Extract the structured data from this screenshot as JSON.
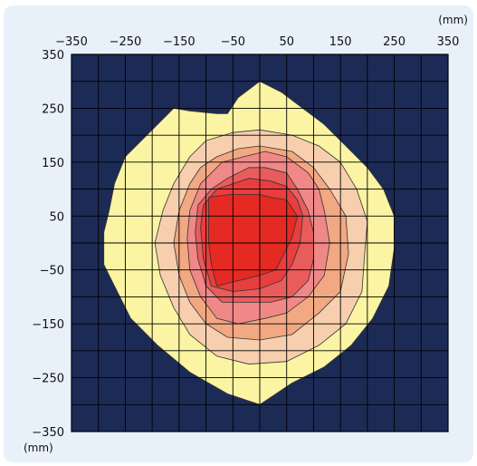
{
  "chart_data": {
    "type": "heatmap",
    "subtype": "contour",
    "title": "",
    "x_unit": "(mm)",
    "y_unit": "(mm)",
    "xlim": [
      -350,
      350
    ],
    "ylim": [
      -350,
      350
    ],
    "x_ticks": [
      -350,
      -250,
      -150,
      -50,
      50,
      150,
      250,
      350
    ],
    "y_ticks": [
      350,
      250,
      150,
      50,
      -50,
      -150,
      -250,
      -350
    ],
    "x_tick_labels": [
      "−350",
      "−250",
      "−150",
      "−50",
      "50",
      "150",
      "250",
      "350"
    ],
    "y_tick_labels": [
      "350",
      "250",
      "150",
      "50",
      "−50",
      "−150",
      "−250",
      "−350"
    ],
    "grid_step": 50,
    "grid": true,
    "x_axis_position": "top",
    "background_color": "#1c2b56",
    "grid_color": "#000000",
    "level_colors": [
      "#fbf4a2",
      "#f7cfae",
      "#f2a882",
      "#f08888",
      "#e85c5c",
      "#e83e3e",
      "#e42a22"
    ],
    "contours": [
      {
        "level": 1,
        "points": [
          [
            -160,
            250
          ],
          [
            -130,
            245
          ],
          [
            -80,
            240
          ],
          [
            -60,
            240
          ],
          [
            -40,
            270
          ],
          [
            0,
            300
          ],
          [
            40,
            280
          ],
          [
            80,
            250
          ],
          [
            120,
            220
          ],
          [
            160,
            180
          ],
          [
            200,
            140
          ],
          [
            230,
            100
          ],
          [
            250,
            50
          ],
          [
            250,
            -10
          ],
          [
            240,
            -80
          ],
          [
            210,
            -140
          ],
          [
            170,
            -190
          ],
          [
            120,
            -230
          ],
          [
            60,
            -260
          ],
          [
            0,
            -300
          ],
          [
            -60,
            -280
          ],
          [
            -130,
            -240
          ],
          [
            -190,
            -190
          ],
          [
            -240,
            -140
          ],
          [
            -270,
            -80
          ],
          [
            -290,
            -40
          ],
          [
            -290,
            20
          ],
          [
            -280,
            60
          ],
          [
            -270,
            110
          ],
          [
            -250,
            160
          ],
          [
            -210,
            200
          ]
        ]
      },
      {
        "level": 2,
        "points": [
          [
            -100,
            190
          ],
          [
            -50,
            205
          ],
          [
            0,
            210
          ],
          [
            60,
            200
          ],
          [
            110,
            180
          ],
          [
            150,
            150
          ],
          [
            180,
            100
          ],
          [
            200,
            40
          ],
          [
            195,
            -20
          ],
          [
            190,
            -90
          ],
          [
            160,
            -150
          ],
          [
            110,
            -190
          ],
          [
            50,
            -220
          ],
          [
            -20,
            -225
          ],
          [
            -80,
            -210
          ],
          [
            -130,
            -170
          ],
          [
            -160,
            -120
          ],
          [
            -185,
            -60
          ],
          [
            -195,
            0
          ],
          [
            -180,
            60
          ],
          [
            -160,
            110
          ],
          [
            -130,
            160
          ]
        ]
      },
      {
        "level": 3,
        "points": [
          [
            -80,
            160
          ],
          [
            -40,
            175
          ],
          [
            0,
            180
          ],
          [
            60,
            170
          ],
          [
            100,
            140
          ],
          [
            130,
            100
          ],
          [
            160,
            50
          ],
          [
            165,
            -20
          ],
          [
            150,
            -90
          ],
          [
            110,
            -130
          ],
          [
            60,
            -170
          ],
          [
            0,
            -180
          ],
          [
            -60,
            -175
          ],
          [
            -100,
            -150
          ],
          [
            -130,
            -110
          ],
          [
            -150,
            -60
          ],
          [
            -160,
            0
          ],
          [
            -150,
            60
          ],
          [
            -130,
            110
          ],
          [
            -110,
            140
          ]
        ]
      },
      {
        "level": 4,
        "points": [
          [
            -70,
            150
          ],
          [
            -30,
            160
          ],
          [
            10,
            170
          ],
          [
            50,
            160
          ],
          [
            90,
            130
          ],
          [
            110,
            100
          ],
          [
            120,
            60
          ],
          [
            130,
            0
          ],
          [
            120,
            -60
          ],
          [
            90,
            -100
          ],
          [
            50,
            -130
          ],
          [
            10,
            -140
          ],
          [
            -40,
            -150
          ],
          [
            -80,
            -140
          ],
          [
            -110,
            -100
          ],
          [
            -130,
            -50
          ],
          [
            -135,
            10
          ],
          [
            -130,
            60
          ],
          [
            -110,
            110
          ]
        ]
      },
      {
        "level": 5,
        "points": [
          [
            -60,
            120
          ],
          [
            -20,
            140
          ],
          [
            10,
            140
          ],
          [
            50,
            130
          ],
          [
            70,
            100
          ],
          [
            90,
            60
          ],
          [
            100,
            20
          ],
          [
            100,
            -30
          ],
          [
            90,
            -70
          ],
          [
            60,
            -100
          ],
          [
            20,
            -110
          ],
          [
            -30,
            -110
          ],
          [
            -70,
            -110
          ],
          [
            -100,
            -80
          ],
          [
            -115,
            -30
          ],
          [
            -120,
            20
          ],
          [
            -115,
            70
          ],
          [
            -90,
            100
          ]
        ]
      },
      {
        "level": 6,
        "points": [
          [
            -80,
            100
          ],
          [
            -50,
            110
          ],
          [
            -20,
            120
          ],
          [
            20,
            115
          ],
          [
            50,
            105
          ],
          [
            70,
            80
          ],
          [
            80,
            50
          ],
          [
            75,
            0
          ],
          [
            60,
            -40
          ],
          [
            40,
            -70
          ],
          [
            0,
            -85
          ],
          [
            -50,
            -90
          ],
          [
            -90,
            -80
          ],
          [
            -105,
            -30
          ],
          [
            -110,
            30
          ],
          [
            -105,
            70
          ]
        ]
      },
      {
        "level": 7,
        "points": [
          [
            -95,
            85
          ],
          [
            -55,
            90
          ],
          [
            -20,
            90
          ],
          [
            0,
            90
          ],
          [
            20,
            85
          ],
          [
            50,
            80
          ],
          [
            70,
            50
          ],
          [
            60,
            10
          ],
          [
            45,
            -20
          ],
          [
            30,
            -50
          ],
          [
            0,
            -60
          ],
          [
            -40,
            -70
          ],
          [
            -80,
            -80
          ],
          [
            -90,
            -40
          ],
          [
            -95,
            0
          ],
          [
            -95,
            50
          ]
        ]
      }
    ]
  }
}
